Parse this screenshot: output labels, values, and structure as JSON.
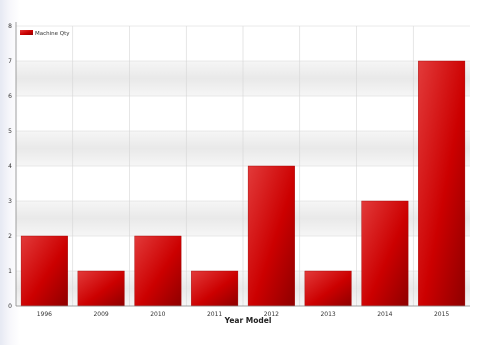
{
  "chart_data": {
    "type": "bar",
    "categories": [
      "1996",
      "2009",
      "2010",
      "2011",
      "2012",
      "2013",
      "2014",
      "2015"
    ],
    "series": [
      {
        "name": "Machine Qty",
        "values": [
          2,
          1,
          2,
          1,
          4,
          1,
          3,
          7
        ]
      }
    ],
    "xlabel": "Year Model",
    "ylabel": "",
    "ylim": [
      0,
      8
    ],
    "yticks": [
      0,
      1,
      2,
      3,
      4,
      5,
      6,
      7,
      8
    ],
    "grid": true,
    "legend": "top-left",
    "colors": {
      "bar": "#cc0000",
      "bar_light": "#e23a3a",
      "bar_dark": "#8e0000",
      "band": "#ececec",
      "grid": "#d6d6d6"
    }
  }
}
